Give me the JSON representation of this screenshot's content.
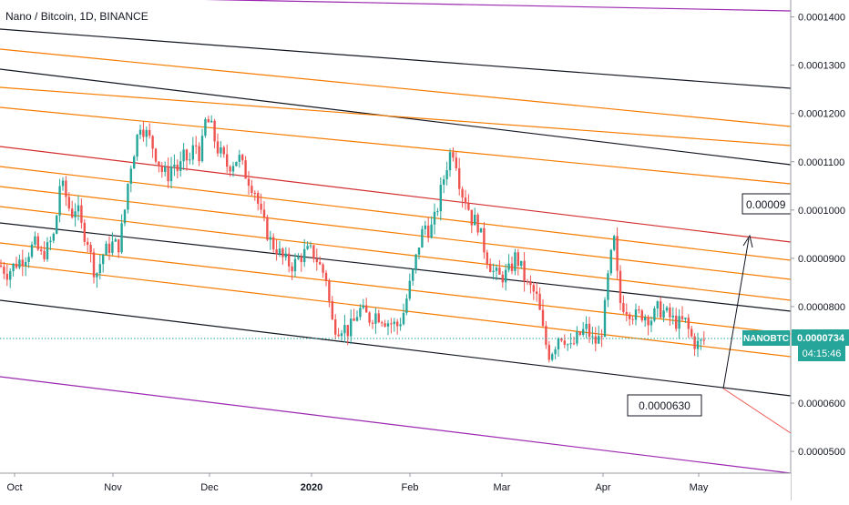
{
  "chart_data": {
    "type": "candlestick",
    "title": "Nano / Bitcoin, 1D, BINANCE",
    "ticker_badge": "NANOBTC",
    "last_price": "0.0000734",
    "countdown": "04:15:46",
    "annotation_low": "0.0000630",
    "annotation_high": "0.00009",
    "ylim": [
      4.55e-05,
      0.0001435
    ],
    "y_ticks": [
      "0.0001400",
      "0.0001300",
      "0.0001200",
      "0.0001100",
      "0.0001000",
      "0.0000900",
      "0.0000800",
      "0.0000600",
      "0.0000500"
    ],
    "x_ticks": [
      {
        "label": "Oct",
        "bold": false
      },
      {
        "label": "Nov",
        "bold": false
      },
      {
        "label": "Dec",
        "bold": false
      },
      {
        "label": "2020",
        "bold": true
      },
      {
        "label": "Feb",
        "bold": false
      },
      {
        "label": "Mar",
        "bold": false
      },
      {
        "label": "Apr",
        "bold": false
      },
      {
        "label": "May",
        "bold": false
      }
    ],
    "colors": {
      "up": "#26a69a",
      "down": "#ef5350",
      "channel_black": "#131722",
      "channel_orange": "#f57c00",
      "channel_red": "#d32f2f",
      "channel_purple": "#9c27b0",
      "badge": "#26a69a"
    },
    "grid": false,
    "price_path": [
      [
        0,
        8.85e-05
      ],
      [
        8,
        8.7e-05
      ],
      [
        18,
        8.9e-05
      ],
      [
        28,
        9.05e-05
      ],
      [
        38,
        9.3e-05
      ],
      [
        45,
        9.05e-05
      ],
      [
        52,
        9.2e-05
      ],
      [
        60,
        9.5e-05
      ],
      [
        66,
        0.000106
      ],
      [
        72,
        0.000103
      ],
      [
        78,
        9.9e-05
      ],
      [
        84,
        0.000101
      ],
      [
        90,
        9.6e-05
      ],
      [
        96,
        9.4e-05
      ],
      [
        102,
        8.8e-05
      ],
      [
        107,
        8.7e-05
      ],
      [
        112,
        9.05e-05
      ],
      [
        118,
        9.2e-05
      ],
      [
        124,
        9.3e-05
      ],
      [
        130,
        9.25e-05
      ],
      [
        136,
        9.85e-05
      ],
      [
        142,
        0.000108
      ],
      [
        148,
        0.000113
      ],
      [
        154,
        0.000118
      ],
      [
        160,
        0.000116
      ],
      [
        166,
        0.000114
      ],
      [
        172,
        0.000111
      ],
      [
        178,
        0.000108
      ],
      [
        184,
        0.000107
      ],
      [
        190,
        0.00011
      ],
      [
        196,
        0.000108
      ],
      [
        202,
        0.000111
      ],
      [
        208,
        0.00011
      ],
      [
        214,
        0.000114
      ],
      [
        220,
        0.000111
      ],
      [
        226,
        0.000119
      ],
      [
        232,
        0.000117
      ],
      [
        238,
        0.000113
      ],
      [
        244,
        0.000111
      ],
      [
        250,
        0.000109
      ],
      [
        256,
        0.00011
      ],
      [
        262,
        0.000111
      ],
      [
        268,
        0.000108
      ],
      [
        274,
        0.000106
      ],
      [
        280,
        0.000104
      ],
      [
        286,
        9.9e-05
      ],
      [
        292,
        9.6e-05
      ],
      [
        298,
        9.3e-05
      ],
      [
        304,
        9.2e-05
      ],
      [
        310,
        9e-05
      ],
      [
        316,
        8.9e-05
      ],
      [
        322,
        8.85e-05
      ],
      [
        328,
        9e-05
      ],
      [
        334,
        9.1e-05
      ],
      [
        340,
        9.15e-05
      ],
      [
        346,
        9.05e-05
      ],
      [
        352,
        8.8e-05
      ],
      [
        358,
        8.6e-05
      ],
      [
        364,
        7.7e-05
      ],
      [
        370,
        7.55e-05
      ],
      [
        376,
        7.6e-05
      ],
      [
        382,
        7.5e-05
      ],
      [
        388,
        7.65e-05
      ],
      [
        394,
        7.95e-05
      ],
      [
        400,
        7.85e-05
      ],
      [
        406,
        7.75e-05
      ],
      [
        412,
        7.85e-05
      ],
      [
        418,
        7.8e-05
      ],
      [
        424,
        7.7e-05
      ],
      [
        430,
        7.65e-05
      ],
      [
        436,
        7.6e-05
      ],
      [
        442,
        7.8e-05
      ],
      [
        448,
        8.3e-05
      ],
      [
        454,
        8.75e-05
      ],
      [
        460,
        9.3e-05
      ],
      [
        466,
        9.7e-05
      ],
      [
        472,
        9.55e-05
      ],
      [
        478,
        9.85e-05
      ],
      [
        484,
        0.000104
      ],
      [
        490,
        0.000109
      ],
      [
        496,
        0.000113
      ],
      [
        500,
        0.000111
      ],
      [
        506,
        0.000104
      ],
      [
        512,
        0.000102
      ],
      [
        518,
        9.8e-05
      ],
      [
        524,
        9.75e-05
      ],
      [
        530,
        9.3e-05
      ],
      [
        536,
        8.95e-05
      ],
      [
        542,
        8.7e-05
      ],
      [
        548,
        8.6e-05
      ],
      [
        554,
        8.65e-05
      ],
      [
        560,
        8.75e-05
      ],
      [
        566,
        9.05e-05
      ],
      [
        572,
        8.8e-05
      ],
      [
        578,
        8.45e-05
      ],
      [
        584,
        8.35e-05
      ],
      [
        590,
        8.15e-05
      ],
      [
        596,
        7.5e-05
      ],
      [
        602,
        7e-05
      ],
      [
        608,
        7.15e-05
      ],
      [
        614,
        7.45e-05
      ],
      [
        620,
        7.35e-05
      ],
      [
        626,
        7.1e-05
      ],
      [
        632,
        7.3e-05
      ],
      [
        638,
        7.45e-05
      ],
      [
        644,
        7.55e-05
      ],
      [
        650,
        7.3e-05
      ],
      [
        656,
        7.25e-05
      ],
      [
        662,
        7.6e-05
      ],
      [
        668,
        8.7e-05
      ],
      [
        674,
        9.4e-05
      ],
      [
        680,
        8.1e-05
      ],
      [
        686,
        8e-05
      ],
      [
        692,
        7.9e-05
      ],
      [
        698,
        7.8e-05
      ],
      [
        704,
        7.85e-05
      ],
      [
        710,
        7.8e-05
      ],
      [
        716,
        7.75e-05
      ],
      [
        722,
        7.95e-05
      ],
      [
        728,
        7.9e-05
      ],
      [
        734,
        7.8e-05
      ],
      [
        740,
        7.7e-05
      ],
      [
        746,
        7.65e-05
      ],
      [
        752,
        7.7e-05
      ],
      [
        758,
        7.4e-05
      ],
      [
        764,
        7.2e-05
      ],
      [
        770,
        7.25e-05
      ],
      [
        776,
        7.34e-05
      ]
    ]
  }
}
